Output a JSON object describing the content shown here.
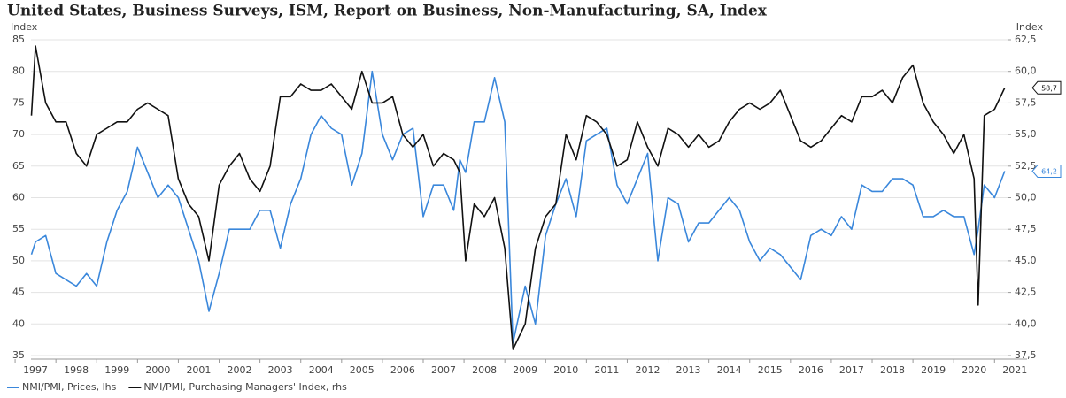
{
  "chart_data": {
    "type": "line",
    "title": "United States, Business Surveys, ISM, Report on Business, Non-Manufacturing, SA, Index",
    "y_label": "Index",
    "y2_label": "Index",
    "x": [
      1996.9,
      1997.0,
      1997.25,
      1997.5,
      1997.75,
      1998.0,
      1998.25,
      1998.5,
      1998.75,
      1999.0,
      1999.25,
      1999.5,
      1999.75,
      2000.0,
      2000.25,
      2000.5,
      2000.75,
      2001.0,
      2001.25,
      2001.5,
      2001.75,
      2002.0,
      2002.25,
      2002.5,
      2002.75,
      2003.0,
      2003.25,
      2003.5,
      2003.75,
      2004.0,
      2004.25,
      2004.5,
      2004.75,
      2005.0,
      2005.25,
      2005.5,
      2005.75,
      2006.0,
      2006.25,
      2006.5,
      2006.75,
      2007.0,
      2007.25,
      2007.4,
      2007.54,
      2007.75,
      2008.0,
      2008.25,
      2008.5,
      2008.7,
      2009.0,
      2009.25,
      2009.5,
      2009.75,
      2010.0,
      2010.25,
      2010.5,
      2010.75,
      2011.0,
      2011.25,
      2011.5,
      2011.75,
      2012.0,
      2012.25,
      2012.5,
      2012.75,
      2013.0,
      2013.25,
      2013.5,
      2013.75,
      2014.0,
      2014.25,
      2014.5,
      2014.75,
      2015.0,
      2015.25,
      2015.5,
      2015.75,
      2016.0,
      2016.25,
      2016.5,
      2016.75,
      2017.0,
      2017.25,
      2017.5,
      2017.75,
      2018.0,
      2018.25,
      2018.5,
      2018.75,
      2019.0,
      2019.25,
      2019.5,
      2019.75,
      2020.0,
      2020.1,
      2020.25,
      2020.5,
      2020.75
    ],
    "series": [
      {
        "name": "NMI/PMI, Prices, lhs",
        "color": "#3a87db",
        "axis": "y",
        "values": [
          51,
          53,
          54,
          48,
          47,
          46,
          48,
          46,
          53,
          58,
          61,
          68,
          64,
          60,
          62,
          60,
          55,
          50,
          42,
          48,
          55,
          55,
          55,
          58,
          58,
          52,
          59,
          63,
          70,
          73,
          71,
          70,
          62,
          67,
          80,
          70,
          66,
          70,
          71,
          57,
          62,
          62,
          58,
          66,
          64,
          72,
          72,
          79,
          72,
          37,
          46,
          40,
          54,
          59,
          63,
          57,
          69,
          70,
          71,
          62,
          59,
          63,
          67,
          50,
          60,
          59,
          53,
          56,
          56,
          58,
          60,
          58,
          53,
          50,
          52,
          51,
          49,
          47,
          54,
          55,
          54,
          57,
          55,
          62,
          61,
          61,
          63,
          63,
          62,
          57,
          57,
          58,
          57,
          57,
          51,
          55,
          62,
          60,
          64.2
        ]
      },
      {
        "name": "NMI/PMI, Purchasing Managers' Index, rhs",
        "color": "#111111",
        "axis": "y2",
        "values": [
          56.5,
          62,
          57.5,
          56,
          56,
          53.5,
          52.5,
          55,
          55.5,
          56,
          56,
          57,
          57.5,
          57,
          56.5,
          51.5,
          49.5,
          48.5,
          45,
          51,
          52.5,
          53.5,
          51.5,
          50.5,
          52.5,
          58,
          58,
          59,
          58.5,
          58.5,
          59,
          58,
          57,
          60,
          57.5,
          57.5,
          58,
          55,
          54,
          55,
          52.5,
          53.5,
          53,
          52,
          45,
          49.5,
          48.5,
          50,
          46,
          38,
          40,
          46,
          48.5,
          49.5,
          55,
          53,
          56.5,
          56,
          55,
          52.5,
          53,
          56,
          54,
          52.5,
          55.5,
          55,
          54,
          55,
          54,
          54.5,
          56,
          57,
          57.5,
          57,
          57.5,
          58.5,
          56.5,
          54.5,
          54,
          54.5,
          55.5,
          56.5,
          56,
          58,
          58,
          58.5,
          57.5,
          59.5,
          60.5,
          57.5,
          56,
          55,
          53.5,
          55,
          51.5,
          41.5,
          56.5,
          57,
          58.7
        ]
      }
    ],
    "annotations": [
      {
        "text": "58,7",
        "value": 58.7,
        "axis": "y2",
        "color": "#111111"
      },
      {
        "text": "64,2",
        "value": 64.2,
        "axis": "y",
        "color": "#3a87db"
      }
    ],
    "xlim": [
      1996.89,
      2020.82
    ],
    "xticks": [
      1997,
      1998,
      1999,
      2000,
      2001,
      2002,
      2003,
      2004,
      2005,
      2006,
      2007,
      2008,
      2009,
      2010,
      2011,
      2012,
      2013,
      2014,
      2015,
      2016,
      2017,
      2018,
      2019,
      2020,
      2021
    ],
    "ylim": [
      35,
      85
    ],
    "yticks": [
      35,
      40,
      45,
      50,
      55,
      60,
      65,
      70,
      75,
      80,
      85
    ],
    "y2lim": [
      37.5,
      62.5
    ],
    "y2ticks": [
      {
        "value": 37.5,
        "label": "37,5"
      },
      {
        "value": 40,
        "label": "40,0"
      },
      {
        "value": 42.5,
        "label": "42,5"
      },
      {
        "value": 45,
        "label": "45,0"
      },
      {
        "value": 47.5,
        "label": "47,5"
      },
      {
        "value": 50,
        "label": "50,0"
      },
      {
        "value": 52.5,
        "label": "52,5"
      },
      {
        "value": 55,
        "label": "55,0"
      },
      {
        "value": 57.5,
        "label": "57,5"
      },
      {
        "value": 60,
        "label": "60,0"
      },
      {
        "value": 62.5,
        "label": "62,5"
      }
    ],
    "grid": true,
    "legend": "bottom-left"
  }
}
